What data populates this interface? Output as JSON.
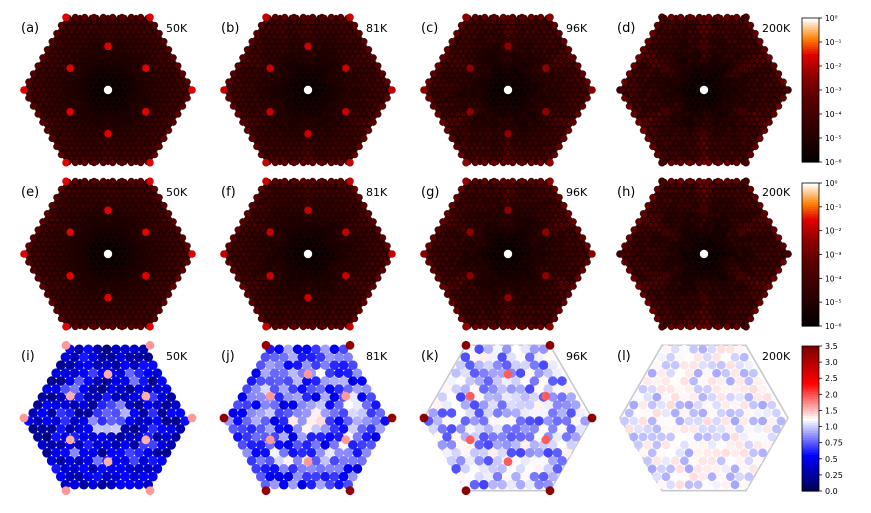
{
  "chart_data": {
    "type": "heatmap",
    "grid_shape": "hexagonal Brillouin zone, dot lattice",
    "temperatures": [
      "50K",
      "81K",
      "96K",
      "200K"
    ],
    "panels": [
      {
        "letter": "(a)",
        "temp_label": "50K",
        "row": "log",
        "bright_peaks": true,
        "peak_level": 0.75,
        "diffuse": 0.1
      },
      {
        "letter": "(b)",
        "temp_label": "81K",
        "row": "log",
        "bright_peaks": true,
        "peak_level": 0.7,
        "diffuse": 0.18
      },
      {
        "letter": "(c)",
        "temp_label": "96K",
        "row": "log",
        "bright_peaks": true,
        "peak_level": 0.6,
        "diffuse": 0.28
      },
      {
        "letter": "(d)",
        "temp_label": "200K",
        "row": "log",
        "bright_peaks": false,
        "peak_level": 0.35,
        "diffuse": 0.34
      },
      {
        "letter": "(e)",
        "temp_label": "50K",
        "row": "log",
        "bright_peaks": true,
        "peak_level": 0.75,
        "diffuse": 0.1
      },
      {
        "letter": "(f)",
        "temp_label": "81K",
        "row": "log",
        "bright_peaks": true,
        "peak_level": 0.7,
        "diffuse": 0.18
      },
      {
        "letter": "(g)",
        "temp_label": "96K",
        "row": "log",
        "bright_peaks": true,
        "peak_level": 0.6,
        "diffuse": 0.28
      },
      {
        "letter": "(h)",
        "temp_label": "200K",
        "row": "log",
        "bright_peaks": false,
        "peak_level": 0.35,
        "diffuse": 0.34
      },
      {
        "letter": "(i)",
        "temp_label": "50K",
        "row": "ratio",
        "ratio_mean": 0.35,
        "ratio_spread": 0.2,
        "hex_outline": false
      },
      {
        "letter": "(j)",
        "temp_label": "81K",
        "row": "ratio",
        "ratio_mean": 0.62,
        "ratio_spread": 0.22,
        "hex_outline": false
      },
      {
        "letter": "(k)",
        "temp_label": "96K",
        "row": "ratio",
        "ratio_mean": 0.85,
        "ratio_spread": 0.22,
        "hex_outline": true
      },
      {
        "letter": "(l)",
        "temp_label": "200K",
        "row": "ratio",
        "ratio_mean": 1.05,
        "ratio_spread": 0.1,
        "hex_outline": true
      }
    ],
    "colorbars": [
      {
        "name": "log-intensity (top)",
        "colormap": "gist_heat",
        "scale": "log",
        "ticks": [
          "10⁰",
          "10⁻¹",
          "10⁻²",
          "10⁻³",
          "10⁻⁴",
          "10⁻⁵",
          "10⁻⁶"
        ],
        "range": [
          1e-06,
          1
        ]
      },
      {
        "name": "log-intensity (middle)",
        "colormap": "gist_heat",
        "scale": "log",
        "ticks": [
          "10⁰",
          "10⁻¹",
          "10⁻²",
          "10⁻³",
          "10⁻⁴",
          "10⁻⁵",
          "10⁻⁶"
        ],
        "range": [
          1e-06,
          1
        ]
      },
      {
        "name": "ratio (bottom)",
        "colormap": "seismic",
        "scale": "nonlinear",
        "ticks": [
          "3.5",
          "3.0",
          "2.5",
          "2.0",
          "1.5",
          "1.0",
          "0.75",
          "0.5",
          "0.25",
          "0.0"
        ],
        "range": [
          0.0,
          3.5
        ]
      }
    ],
    "colors": {
      "heat_dark": "#000000",
      "heat_mid": "#8b0000",
      "heat_bright": "#ff7f00",
      "heat_white": "#ffffff",
      "seismic_low": "#00004c",
      "seismic_blue": "#0000ff",
      "seismic_white": "#ffffff",
      "seismic_red": "#ff0000",
      "seismic_high": "#800000",
      "outline": "#c8c8d0"
    }
  }
}
